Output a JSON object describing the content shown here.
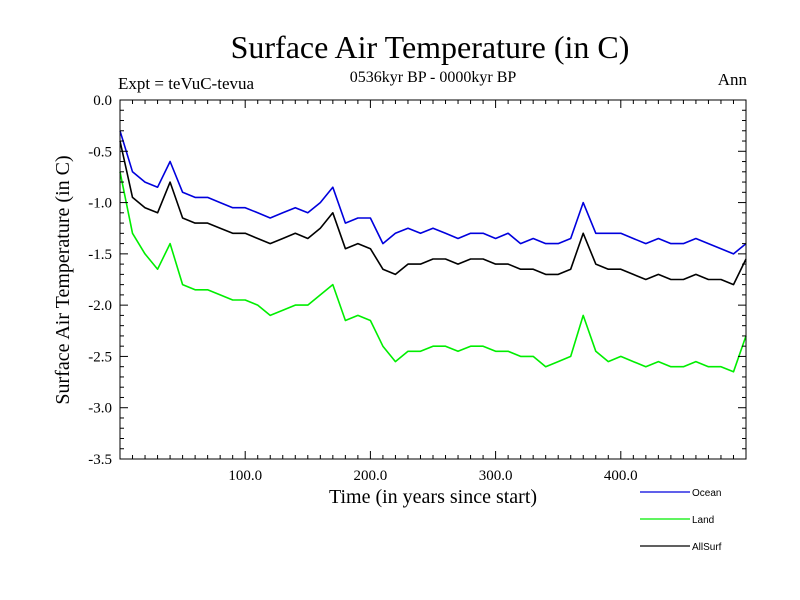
{
  "chart_data": {
    "type": "line",
    "title": "Surface Air Temperature (in C)",
    "subtitle": "0536kyr BP - 0000kyr BP",
    "left_label": "Expt = teVuC-tevua",
    "right_label": "Ann",
    "xlabel": "Time (in years since start)",
    "ylabel": "Surface Air Temperature (in C)",
    "xlim": [
      0,
      500
    ],
    "ylim": [
      -3.5,
      0.0
    ],
    "x_ticks": [
      100,
      200,
      300,
      400
    ],
    "x_tick_labels": [
      "100.0",
      "200.0",
      "300.0",
      "400.0"
    ],
    "y_ticks": [
      0.0,
      -0.5,
      -1.0,
      -1.5,
      -2.0,
      -2.5,
      -3.0,
      -3.5
    ],
    "y_tick_labels": [
      "0.0",
      "-0.5",
      "-1.0",
      "-1.5",
      "-2.0",
      "-2.5",
      "-3.0",
      "-3.5"
    ],
    "legend_position": "bottom-right",
    "colors": {
      "Ocean": "#0000dd",
      "Land": "#00ee00",
      "AllSurf": "#000000"
    },
    "series": [
      {
        "name": "Ocean",
        "x": [
          0,
          10,
          20,
          30,
          40,
          50,
          60,
          70,
          80,
          90,
          100,
          110,
          120,
          130,
          140,
          150,
          160,
          170,
          180,
          190,
          200,
          210,
          220,
          230,
          240,
          250,
          260,
          270,
          280,
          290,
          300,
          310,
          320,
          330,
          340,
          350,
          360,
          370,
          380,
          390,
          400,
          410,
          420,
          430,
          440,
          450,
          460,
          470,
          480,
          490,
          500
        ],
        "values": [
          -0.3,
          -0.7,
          -0.8,
          -0.85,
          -0.6,
          -0.9,
          -0.95,
          -0.95,
          -1.0,
          -1.05,
          -1.05,
          -1.1,
          -1.15,
          -1.1,
          -1.05,
          -1.1,
          -1.0,
          -0.85,
          -1.2,
          -1.15,
          -1.15,
          -1.4,
          -1.3,
          -1.25,
          -1.3,
          -1.25,
          -1.3,
          -1.35,
          -1.3,
          -1.3,
          -1.35,
          -1.3,
          -1.4,
          -1.35,
          -1.4,
          -1.4,
          -1.35,
          -1.0,
          -1.3,
          -1.3,
          -1.3,
          -1.35,
          -1.4,
          -1.35,
          -1.4,
          -1.4,
          -1.35,
          -1.4,
          -1.45,
          -1.5,
          -1.4
        ]
      },
      {
        "name": "Land",
        "x": [
          0,
          10,
          20,
          30,
          40,
          50,
          60,
          70,
          80,
          90,
          100,
          110,
          120,
          130,
          140,
          150,
          160,
          170,
          180,
          190,
          200,
          210,
          220,
          230,
          240,
          250,
          260,
          270,
          280,
          290,
          300,
          310,
          320,
          330,
          340,
          350,
          360,
          370,
          380,
          390,
          400,
          410,
          420,
          430,
          440,
          450,
          460,
          470,
          480,
          490,
          500
        ],
        "values": [
          -0.7,
          -1.3,
          -1.5,
          -1.65,
          -1.4,
          -1.8,
          -1.85,
          -1.85,
          -1.9,
          -1.95,
          -1.95,
          -2.0,
          -2.1,
          -2.05,
          -2.0,
          -2.0,
          -1.9,
          -1.8,
          -2.15,
          -2.1,
          -2.15,
          -2.4,
          -2.55,
          -2.45,
          -2.45,
          -2.4,
          -2.4,
          -2.45,
          -2.4,
          -2.4,
          -2.45,
          -2.45,
          -2.5,
          -2.5,
          -2.6,
          -2.55,
          -2.5,
          -2.1,
          -2.45,
          -2.55,
          -2.5,
          -2.55,
          -2.6,
          -2.55,
          -2.6,
          -2.6,
          -2.55,
          -2.6,
          -2.6,
          -2.65,
          -2.3
        ]
      },
      {
        "name": "AllSurf",
        "x": [
          0,
          10,
          20,
          30,
          40,
          50,
          60,
          70,
          80,
          90,
          100,
          110,
          120,
          130,
          140,
          150,
          160,
          170,
          180,
          190,
          200,
          210,
          220,
          230,
          240,
          250,
          260,
          270,
          280,
          290,
          300,
          310,
          320,
          330,
          340,
          350,
          360,
          370,
          380,
          390,
          400,
          410,
          420,
          430,
          440,
          450,
          460,
          470,
          480,
          490,
          500
        ],
        "values": [
          -0.4,
          -0.95,
          -1.05,
          -1.1,
          -0.8,
          -1.15,
          -1.2,
          -1.2,
          -1.25,
          -1.3,
          -1.3,
          -1.35,
          -1.4,
          -1.35,
          -1.3,
          -1.35,
          -1.25,
          -1.1,
          -1.45,
          -1.4,
          -1.45,
          -1.65,
          -1.7,
          -1.6,
          -1.6,
          -1.55,
          -1.55,
          -1.6,
          -1.55,
          -1.55,
          -1.6,
          -1.6,
          -1.65,
          -1.65,
          -1.7,
          -1.7,
          -1.65,
          -1.3,
          -1.6,
          -1.65,
          -1.65,
          -1.7,
          -1.75,
          -1.7,
          -1.75,
          -1.75,
          -1.7,
          -1.75,
          -1.75,
          -1.8,
          -1.55
        ]
      }
    ]
  }
}
